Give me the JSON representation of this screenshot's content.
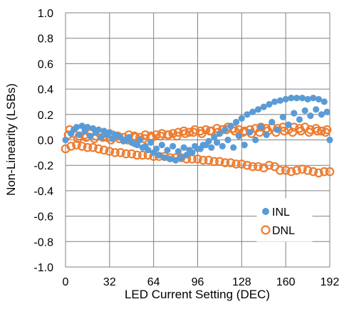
{
  "chart_data": {
    "type": "scatter",
    "xlabel": "LED Current Setting (DEC)",
    "ylabel": "Non-Linearity (LSBs)",
    "xlim": [
      0,
      192
    ],
    "ylim": [
      -1.0,
      1.0
    ],
    "x_ticks": [
      "0",
      "32",
      "64",
      "96",
      "128",
      "160",
      "192"
    ],
    "y_ticks": [
      "1.0",
      "0.8",
      "0.6",
      "0.4",
      "0.2",
      "0.0",
      "-0.2",
      "-0.4",
      "-0.6",
      "-0.8",
      "-1.0"
    ],
    "grid": true,
    "legend_position": "bottom-right",
    "series": [
      {
        "name": "INL",
        "marker": "filled-circle",
        "color": "#5b9bd5",
        "points": [
          [
            0,
            0.0
          ],
          [
            4,
            0.05
          ],
          [
            8,
            0.1
          ],
          [
            12,
            0.11
          ],
          [
            16,
            0.1
          ],
          [
            20,
            0.09
          ],
          [
            24,
            0.08
          ],
          [
            28,
            0.07
          ],
          [
            32,
            0.06
          ],
          [
            36,
            0.04
          ],
          [
            40,
            0.02
          ],
          [
            44,
            0.0
          ],
          [
            48,
            -0.02
          ],
          [
            52,
            -0.04
          ],
          [
            56,
            -0.06
          ],
          [
            60,
            -0.08
          ],
          [
            64,
            -0.1
          ],
          [
            68,
            -0.12
          ],
          [
            72,
            -0.14
          ],
          [
            76,
            -0.15
          ],
          [
            80,
            -0.16
          ],
          [
            84,
            -0.14
          ],
          [
            88,
            -0.12
          ],
          [
            92,
            -0.1
          ],
          [
            96,
            -0.07
          ],
          [
            100,
            -0.04
          ],
          [
            104,
            -0.01
          ],
          [
            108,
            0.02
          ],
          [
            112,
            0.05
          ],
          [
            116,
            0.08
          ],
          [
            120,
            0.11
          ],
          [
            124,
            0.14
          ],
          [
            128,
            0.17
          ],
          [
            132,
            0.2
          ],
          [
            136,
            0.22
          ],
          [
            140,
            0.24
          ],
          [
            144,
            0.26
          ],
          [
            148,
            0.28
          ],
          [
            152,
            0.3
          ],
          [
            156,
            0.31
          ],
          [
            160,
            0.32
          ],
          [
            164,
            0.33
          ],
          [
            168,
            0.33
          ],
          [
            172,
            0.33
          ],
          [
            176,
            0.32
          ],
          [
            180,
            0.33
          ],
          [
            184,
            0.32
          ],
          [
            188,
            0.3
          ],
          [
            6,
            0.08
          ],
          [
            14,
            0.07
          ],
          [
            22,
            0.06
          ],
          [
            30,
            0.04
          ],
          [
            38,
            0.03
          ],
          [
            46,
            0.02
          ],
          [
            54,
            0.0
          ],
          [
            62,
            -0.02
          ],
          [
            70,
            -0.04
          ],
          [
            78,
            -0.05
          ],
          [
            86,
            -0.06
          ],
          [
            94,
            -0.05
          ],
          [
            102,
            -0.04
          ],
          [
            110,
            -0.02
          ],
          [
            118,
            0.0
          ],
          [
            126,
            0.03
          ],
          [
            134,
            0.06
          ],
          [
            142,
            0.1
          ],
          [
            150,
            0.14
          ],
          [
            158,
            0.18
          ],
          [
            166,
            0.21
          ],
          [
            174,
            0.23
          ],
          [
            182,
            0.24
          ],
          [
            190,
            0.22
          ],
          [
            10,
            0.04
          ],
          [
            18,
            0.03
          ],
          [
            26,
            0.02
          ],
          [
            34,
            0.01
          ],
          [
            42,
            -0.01
          ],
          [
            50,
            -0.03
          ],
          [
            58,
            -0.05
          ],
          [
            66,
            -0.07
          ],
          [
            74,
            -0.08
          ],
          [
            82,
            -0.09
          ],
          [
            90,
            -0.08
          ],
          [
            98,
            -0.07
          ],
          [
            106,
            -0.06
          ],
          [
            114,
            -0.05
          ],
          [
            122,
            -0.06
          ],
          [
            130,
            -0.04
          ],
          [
            138,
            0.0
          ],
          [
            146,
            0.04
          ],
          [
            154,
            0.08
          ],
          [
            162,
            0.12
          ],
          [
            170,
            0.16
          ],
          [
            178,
            0.19
          ],
          [
            186,
            0.2
          ],
          [
            192,
            0.0
          ]
        ]
      },
      {
        "name": "DNL",
        "marker": "open-circle",
        "color": "#ed7d31",
        "points": [
          [
            0,
            -0.07
          ],
          [
            4,
            -0.05
          ],
          [
            8,
            -0.04
          ],
          [
            12,
            -0.05
          ],
          [
            16,
            -0.06
          ],
          [
            20,
            -0.06
          ],
          [
            24,
            -0.07
          ],
          [
            28,
            -0.08
          ],
          [
            32,
            -0.09
          ],
          [
            36,
            -0.1
          ],
          [
            40,
            -0.1
          ],
          [
            44,
            -0.11
          ],
          [
            48,
            -0.11
          ],
          [
            52,
            -0.12
          ],
          [
            56,
            -0.12
          ],
          [
            60,
            -0.12
          ],
          [
            64,
            -0.13
          ],
          [
            68,
            -0.13
          ],
          [
            72,
            -0.13
          ],
          [
            76,
            -0.14
          ],
          [
            80,
            -0.14
          ],
          [
            84,
            -0.14
          ],
          [
            88,
            -0.15
          ],
          [
            92,
            -0.15
          ],
          [
            96,
            -0.15
          ],
          [
            100,
            -0.16
          ],
          [
            104,
            -0.16
          ],
          [
            108,
            -0.17
          ],
          [
            112,
            -0.17
          ],
          [
            116,
            -0.18
          ],
          [
            120,
            -0.18
          ],
          [
            124,
            -0.19
          ],
          [
            128,
            -0.19
          ],
          [
            132,
            -0.2
          ],
          [
            136,
            -0.21
          ],
          [
            140,
            -0.21
          ],
          [
            144,
            -0.22
          ],
          [
            148,
            -0.2
          ],
          [
            152,
            -0.21
          ],
          [
            156,
            -0.24
          ],
          [
            160,
            -0.24
          ],
          [
            164,
            -0.25
          ],
          [
            168,
            -0.24
          ],
          [
            172,
            -0.23
          ],
          [
            176,
            -0.24
          ],
          [
            180,
            -0.25
          ],
          [
            184,
            -0.26
          ],
          [
            188,
            -0.25
          ],
          [
            192,
            -0.25
          ],
          [
            2,
            0.04
          ],
          [
            6,
            0.05
          ],
          [
            10,
            0.03
          ],
          [
            14,
            0.04
          ],
          [
            18,
            0.05
          ],
          [
            22,
            0.03
          ],
          [
            26,
            0.04
          ],
          [
            30,
            0.02
          ],
          [
            34,
            0.04
          ],
          [
            38,
            0.03
          ],
          [
            42,
            0.02
          ],
          [
            46,
            0.04
          ],
          [
            50,
            0.03
          ],
          [
            54,
            0.02
          ],
          [
            58,
            0.04
          ],
          [
            62,
            0.03
          ],
          [
            66,
            0.04
          ],
          [
            70,
            0.05
          ],
          [
            74,
            0.04
          ],
          [
            78,
            0.05
          ],
          [
            82,
            0.06
          ],
          [
            86,
            0.07
          ],
          [
            90,
            0.06
          ],
          [
            94,
            0.08
          ],
          [
            98,
            0.07
          ],
          [
            102,
            0.08
          ],
          [
            106,
            0.07
          ],
          [
            110,
            0.09
          ],
          [
            114,
            0.08
          ],
          [
            118,
            0.1
          ],
          [
            122,
            0.09
          ],
          [
            126,
            0.08
          ],
          [
            130,
            0.07
          ],
          [
            134,
            0.08
          ],
          [
            138,
            0.09
          ],
          [
            142,
            0.1
          ],
          [
            146,
            0.09
          ],
          [
            150,
            0.1
          ],
          [
            154,
            0.09
          ],
          [
            158,
            0.1
          ],
          [
            162,
            0.08
          ],
          [
            166,
            0.1
          ],
          [
            170,
            0.09
          ],
          [
            174,
            0.1
          ],
          [
            178,
            0.08
          ],
          [
            182,
            0.09
          ],
          [
            186,
            0.07
          ],
          [
            190,
            0.08
          ],
          [
            3,
            0.08
          ],
          [
            9,
            0.01
          ],
          [
            15,
            0.02
          ],
          [
            21,
            0.01
          ],
          [
            27,
            0.02
          ],
          [
            33,
            0.0
          ],
          [
            39,
            0.01
          ],
          [
            45,
            0.0
          ],
          [
            51,
            0.02
          ],
          [
            57,
            0.01
          ],
          [
            63,
            0.02
          ],
          [
            69,
            0.03
          ],
          [
            75,
            0.04
          ],
          [
            81,
            0.03
          ],
          [
            87,
            0.05
          ],
          [
            93,
            0.06
          ],
          [
            99,
            0.05
          ],
          [
            105,
            0.07
          ],
          [
            111,
            0.06
          ],
          [
            117,
            0.08
          ],
          [
            123,
            0.07
          ],
          [
            129,
            0.06
          ],
          [
            135,
            0.05
          ],
          [
            141,
            0.06
          ],
          [
            147,
            0.07
          ],
          [
            153,
            0.06
          ],
          [
            159,
            0.07
          ],
          [
            165,
            0.06
          ],
          [
            171,
            0.07
          ],
          [
            177,
            0.06
          ],
          [
            183,
            0.07
          ],
          [
            189,
            0.06
          ]
        ]
      }
    ]
  }
}
